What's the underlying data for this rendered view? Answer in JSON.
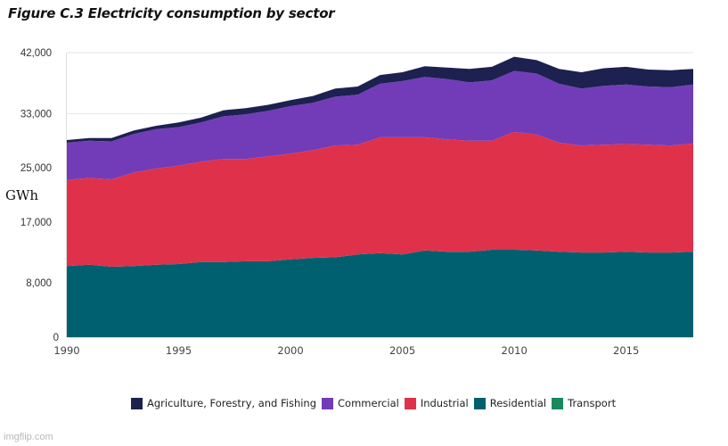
{
  "title": "Figure C.3 Electricity consumption by sector",
  "watermark": "imgflip.com",
  "chart_data": {
    "type": "area",
    "stacked": true,
    "title": "Figure C.3 Electricity consumption by sector",
    "xlabel": "",
    "ylabel": "GWh",
    "x": [
      1990,
      1991,
      1992,
      1993,
      1994,
      1995,
      1996,
      1997,
      1998,
      1999,
      2000,
      2001,
      2002,
      2003,
      2004,
      2005,
      2006,
      2007,
      2008,
      2009,
      2010,
      2011,
      2012,
      2013,
      2014,
      2015,
      2016,
      2017,
      2018
    ],
    "xlim": [
      1990,
      2018
    ],
    "ylim": [
      0,
      42000
    ],
    "x_ticks": [
      "1990",
      "1995",
      "2000",
      "2005",
      "2010",
      "2015"
    ],
    "x_tick_values": [
      1990,
      1995,
      2000,
      2005,
      2010,
      2015
    ],
    "y_ticks": [
      "0",
      "8,000",
      "17,000",
      "25,000",
      "33,000",
      "42,000"
    ],
    "y_tick_values": [
      0,
      8000,
      17000,
      25000,
      33000,
      42000
    ],
    "grid": "horizontal",
    "legend_position": "bottom",
    "series": [
      {
        "name": "Transport",
        "color": "#1a8a5e",
        "values": [
          0,
          0,
          0,
          0,
          0,
          0,
          0,
          0,
          0,
          0,
          0,
          0,
          0,
          0,
          0,
          0,
          0,
          0,
          0,
          0,
          0,
          0,
          0,
          0,
          0,
          0,
          0,
          0,
          0
        ]
      },
      {
        "name": "Residential",
        "color": "#006070",
        "values": [
          10500,
          10700,
          10400,
          10500,
          10700,
          10800,
          11100,
          11100,
          11200,
          11200,
          11500,
          11700,
          11800,
          12200,
          12400,
          12200,
          12800,
          12600,
          12600,
          12900,
          12900,
          12800,
          12600,
          12500,
          12500,
          12600,
          12500,
          12500,
          12600
        ]
      },
      {
        "name": "Industrial",
        "color": "#e0314b",
        "values": [
          12700,
          12800,
          12900,
          13800,
          14200,
          14500,
          14800,
          15200,
          15100,
          15500,
          15600,
          15900,
          16500,
          16200,
          17100,
          17300,
          16700,
          16600,
          16400,
          16100,
          17400,
          17100,
          16100,
          15800,
          15900,
          15900,
          15900,
          15800,
          16000
        ]
      },
      {
        "name": "Commercial",
        "color": "#723cb8",
        "values": [
          5500,
          5500,
          5600,
          5700,
          5800,
          5700,
          5800,
          6300,
          6600,
          6700,
          7000,
          7000,
          7200,
          7400,
          7900,
          8300,
          8900,
          8900,
          8600,
          8900,
          9000,
          9000,
          8700,
          8400,
          8700,
          8800,
          8600,
          8600,
          8700
        ]
      },
      {
        "name": "Agriculture, Forestry, and Fishing",
        "color": "#1c2150",
        "values": [
          400,
          400,
          500,
          500,
          500,
          700,
          700,
          900,
          900,
          900,
          900,
          1000,
          1200,
          1200,
          1300,
          1300,
          1600,
          1700,
          2000,
          2000,
          2100,
          2000,
          2200,
          2400,
          2600,
          2600,
          2500,
          2500,
          2300
        ]
      }
    ],
    "legend_order": [
      "Agriculture, Forestry, and Fishing",
      "Commercial",
      "Industrial",
      "Residential",
      "Transport"
    ]
  }
}
